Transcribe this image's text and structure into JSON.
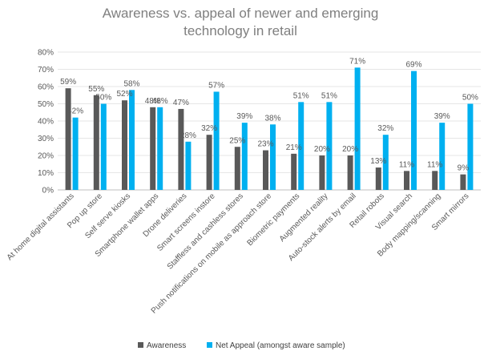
{
  "chart_data": {
    "type": "bar",
    "title": "Awareness vs. appeal of newer and emerging technology in retail",
    "title_lines": [
      "Awareness vs. appeal of newer and emerging",
      "technology in retail"
    ],
    "categories": [
      "At home digital assistants",
      "Pop up store",
      "Self serve kiosks",
      "Smartphone wallet apps",
      "Drone deliveries",
      "Smart screens instore",
      "Staffless and cashless stores",
      "Push notifications on mobile as approach store",
      "Biometric payments",
      "Augmented reality",
      "Auto-stock alerts by email",
      "Retail robots",
      "Visual search",
      "Body mapping/scanning",
      "Smart mirrors"
    ],
    "series": [
      {
        "name": "Awareness",
        "color": "#595959",
        "values": [
          59,
          55,
          52,
          48,
          47,
          32,
          25,
          23,
          21,
          20,
          20,
          13,
          11,
          11,
          9
        ]
      },
      {
        "name": "Net Appeal (amongst aware sample)",
        "color": "#00b0f0",
        "values": [
          42,
          50,
          58,
          48,
          28,
          57,
          39,
          38,
          51,
          51,
          71,
          32,
          69,
          39,
          50
        ]
      }
    ],
    "ylim": [
      0,
      80
    ],
    "yticks": [
      "0%",
      "10%",
      "20%",
      "30%",
      "40%",
      "50%",
      "60%",
      "70%",
      "80%"
    ],
    "ytick_values": [
      0,
      10,
      20,
      30,
      40,
      50,
      60,
      70,
      80
    ],
    "value_suffix": "%",
    "grid": true,
    "legend_position": "bottom"
  }
}
